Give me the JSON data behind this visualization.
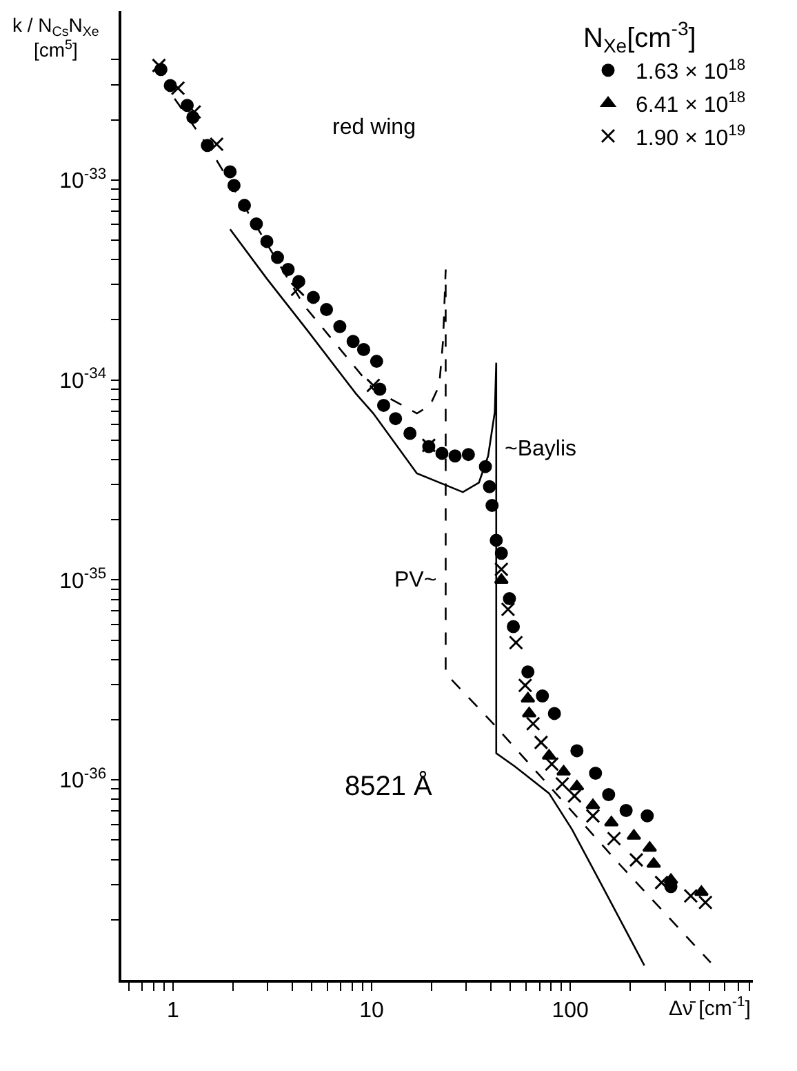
{
  "chart_data": {
    "type": "scatter",
    "xlabel": "Δν̄ [cm$^{-1}$]",
    "ylabel": "k / N$_{Cs}$N$_{Xe}$ [cm$^{5}$]",
    "legend_title": "N$_{Xe}$[cm$^{-3}$]",
    "log": "xy",
    "legend": "top right",
    "xlim": [
      0.55,
      830
    ],
    "ylim": [
      1e-37,
      7e-33
    ],
    "xticks": [
      {
        "value": 0.6,
        "label": null
      },
      {
        "value": 0.7,
        "label": null
      },
      {
        "value": 0.8,
        "label": null
      },
      {
        "value": 0.9,
        "label": null
      },
      1,
      {
        "value": 2,
        "label": null
      },
      {
        "value": 3,
        "label": null
      },
      {
        "value": 4,
        "label": null
      },
      {
        "value": 5,
        "label": null
      },
      {
        "value": 6,
        "label": null
      },
      {
        "value": 7,
        "label": null
      },
      {
        "value": 8,
        "label": null
      },
      {
        "value": 9,
        "label": null
      },
      10,
      {
        "value": 20,
        "label": null
      },
      {
        "value": 30,
        "label": null
      },
      {
        "value": 40,
        "label": null
      },
      {
        "value": 50,
        "label": null
      },
      {
        "value": 60,
        "label": null
      },
      {
        "value": 70,
        "label": null
      },
      {
        "value": 80,
        "label": null
      },
      {
        "value": 90,
        "label": null
      },
      100,
      {
        "value": 200,
        "label": null
      },
      {
        "value": 300,
        "label": null
      },
      {
        "value": 400,
        "label": null
      },
      {
        "value": 500,
        "label": null
      },
      {
        "value": 600,
        "label": null
      },
      {
        "value": 700,
        "label": null
      },
      {
        "value": 800,
        "label": null
      }
    ],
    "yticks": [
      {
        "value": 2e-37,
        "label": null
      },
      {
        "value": 3e-37,
        "label": null
      },
      {
        "value": 4e-37,
        "label": null
      },
      {
        "value": 5e-37,
        "label": null
      },
      {
        "value": 6e-37,
        "label": null
      },
      {
        "value": 7e-37,
        "label": null
      },
      {
        "value": 8e-37,
        "label": null
      },
      {
        "value": 9e-37,
        "label": null
      },
      {
        "value": 1e-36,
        "label": "10$^{-36}$"
      },
      {
        "value": 2e-36,
        "label": null
      },
      {
        "value": 3e-36,
        "label": null
      },
      {
        "value": 4e-36,
        "label": null
      },
      {
        "value": 5e-36,
        "label": null
      },
      {
        "value": 6e-36,
        "label": null
      },
      {
        "value": 7e-36,
        "label": null
      },
      {
        "value": 8e-36,
        "label": null
      },
      {
        "value": 9e-36,
        "label": null
      },
      {
        "value": 1e-35,
        "label": "10$^{-35}$"
      },
      {
        "value": 2e-35,
        "label": null
      },
      {
        "value": 3e-35,
        "label": null
      },
      {
        "value": 4e-35,
        "label": null
      },
      {
        "value": 5e-35,
        "label": null
      },
      {
        "value": 6e-35,
        "label": null
      },
      {
        "value": 7e-35,
        "label": null
      },
      {
        "value": 8e-35,
        "label": null
      },
      {
        "value": 9e-35,
        "label": null
      },
      {
        "value": 1e-34,
        "label": "10$^{-34}$"
      },
      {
        "value": 2e-34,
        "label": null
      },
      {
        "value": 3e-34,
        "label": null
      },
      {
        "value": 4e-34,
        "label": null
      },
      {
        "value": 5e-34,
        "label": null
      },
      {
        "value": 6e-34,
        "label": null
      },
      {
        "value": 7e-34,
        "label": null
      },
      {
        "value": 8e-34,
        "label": null
      },
      {
        "value": 9e-34,
        "label": null
      },
      {
        "value": 1e-33,
        "label": "10$^{-33}$"
      },
      {
        "value": 2e-33,
        "label": null
      },
      {
        "value": 3e-33,
        "label": null
      },
      {
        "value": 4e-33,
        "label": null
      }
    ],
    "annotations": [
      "red wing",
      {
        "text": "~Baylis",
        "x": 42.4,
        "y": 4.5e-35
      },
      {
        "text": "PV~",
        "x": 23.6,
        "y": 1e-35
      },
      "8521 Å"
    ],
    "series": [
      {
        "name": "1.63 × 10$^{18}$",
        "marker": "circle",
        "color": "#000000",
        "x": [
          0.87,
          0.97,
          1.18,
          1.26,
          1.49,
          1.94,
          2.03,
          2.29,
          2.63,
          2.97,
          3.36,
          3.8,
          4.3,
          5.09,
          5.93,
          6.92,
          8.07,
          9.12,
          10.6,
          11.0,
          11.5,
          13.2,
          15.6,
          19.4,
          22.6,
          26.3,
          30.7,
          37.4,
          39.2,
          40.4,
          42.4,
          45,
          49.4,
          51.7,
          61.2,
          72.4,
          83.2,
          108,
          134,
          156,
          191,
          244,
          321
        ],
        "values": [
          3.57e-33,
          2.97e-33,
          2.36e-33,
          2.06e-33,
          1.49e-33,
          1.1e-33,
          9.4e-34,
          7.47e-34,
          6.03e-34,
          4.93e-34,
          4.1e-34,
          3.57e-34,
          3.11e-34,
          2.59e-34,
          2.25e-34,
          1.85e-34,
          1.56e-34,
          1.42e-34,
          1.24e-34,
          9e-35,
          7.47e-35,
          6.41e-35,
          5.41e-35,
          4.64e-35,
          4.3e-35,
          4.17e-35,
          4.24e-35,
          3.69e-35,
          2.93e-35,
          2.36e-35,
          1.58e-35,
          1.36e-35,
          8.07e-36,
          5.85e-36,
          3.47e-36,
          2.63e-36,
          2.15e-36,
          1.4e-36,
          1.08e-36,
          8.45e-37,
          7.03e-37,
          6.61e-37,
          2.93e-37
        ]
      },
      {
        "name": "6.41 × 10$^{18}$",
        "marker": "triangle",
        "color": "#000000",
        "x": [
          45,
          61.2,
          62.1,
          78.2,
          92.6,
          108,
          130,
          161,
          209,
          251,
          263,
          321,
          457
        ],
        "values": [
          1e-35,
          2.55e-36,
          2.15e-36,
          1.32e-36,
          1.1e-36,
          9.27e-37,
          7.47e-37,
          6.12e-37,
          5.25e-37,
          4.57e-37,
          3.8e-37,
          3.16e-37,
          2.75e-37
        ]
      },
      {
        "name": "1.90 × 10$^{19}$",
        "marker": "cross",
        "color": "#000000",
        "x": [
          0.85,
          1.06,
          1.28,
          1.66,
          4.24,
          10.2,
          19.4,
          45,
          48.6,
          53.3,
          59.3,
          65,
          71.3,
          80.7,
          91.2,
          105,
          130,
          166,
          215,
          288,
          404,
          479
        ],
        "values": [
          3.74e-33,
          2.88e-33,
          2.19e-33,
          1.51e-33,
          2.84e-34,
          9.4e-35,
          4.71e-35,
          1.13e-35,
          7.13e-36,
          4.86e-36,
          2.97e-36,
          1.91e-36,
          1.54e-36,
          1.2e-36,
          9.55e-37,
          8.32e-37,
          6.61e-37,
          5.09e-37,
          3.98e-37,
          3.07e-37,
          2.63e-37,
          2.44e-37
        ]
      },
      {
        "type": "line",
        "marker": "none",
        "line_style": "solid",
        "color": "#000000",
        "x": [
          1.94,
          2.97,
          4.71,
          8.32,
          10.2,
          16.9,
          28.8,
          34.7,
          38.6,
          41.7,
          42.4,
          42.4,
          52.5,
          78.2,
          102,
          154,
          236
        ],
        "values": [
          5.67e-34,
          3.21e-34,
          1.79e-34,
          8.57e-35,
          6.81e-35,
          3.41e-35,
          2.75e-35,
          3.07e-35,
          4.17e-35,
          6.92e-35,
          1.22e-34,
          1.36e-36,
          1.17e-36,
          8.57e-37,
          5.66e-37,
          2.63e-37,
          1.18e-37
        ]
      },
      {
        "type": "line",
        "marker": "none",
        "line_style": "dashed",
        "color": "#000000",
        "x": [
          1.02,
          1.54,
          4.57,
          10.2,
          16.9,
          19.7,
          21.9,
          22.9,
          23.6,
          23.6,
          40.4,
          179,
          509
        ],
        "values": [
          2.55e-33,
          1.42e-33,
          2.36e-34,
          8.98e-35,
          6.81e-35,
          7.47e-35,
          9.4e-35,
          1.58e-34,
          3.57e-34,
          3.41e-36,
          1.94e-36,
          3.74e-37,
          1.22e-37
        ]
      }
    ]
  }
}
